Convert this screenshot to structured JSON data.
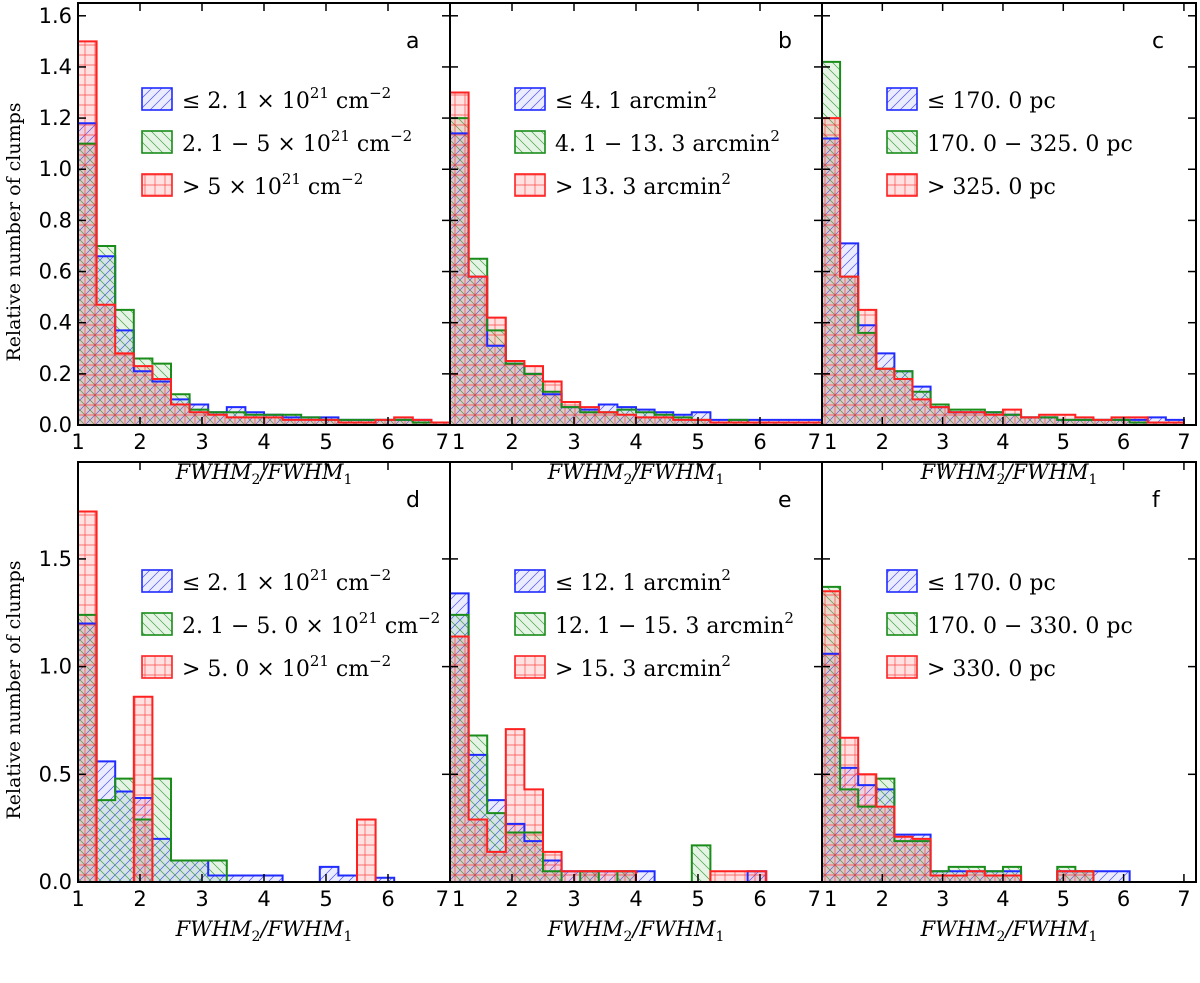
{
  "colors": {
    "blue": "#1f2bff",
    "green": "#1a8c1a",
    "red": "#ff2020"
  },
  "chart_data": [
    {
      "type": "histogram",
      "panel": "a",
      "xlabel": "FWHM2/FWHM1",
      "ylabel": "Relative number of clumps",
      "xlim": [
        1,
        7
      ],
      "ylim": [
        0,
        1.65
      ],
      "bin_width": 0.3,
      "x_ticks": [
        "1",
        "2",
        "3",
        "4",
        "5",
        "6",
        "7"
      ],
      "y_ticks": [
        "0.0",
        "0.2",
        "0.4",
        "0.6",
        "0.8",
        "1.0",
        "1.2",
        "1.4",
        "1.6"
      ],
      "y_tick_values": [
        0,
        0.2,
        0.4,
        0.6,
        0.8,
        1.0,
        1.2,
        1.4,
        1.6
      ],
      "series": [
        {
          "name": "≤2.1 × 10^21 cm^-2",
          "color": "blue",
          "values": [
            1.18,
            0.66,
            0.37,
            0.21,
            0.17,
            0.1,
            0.08,
            0.05,
            0.07,
            0.05,
            0.04,
            0.03,
            0.03,
            0.03,
            0.02,
            0.02,
            0.02,
            0.02,
            0.02,
            0.01
          ]
        },
        {
          "name": "2.1 − 5 × 10^21 cm^-2",
          "color": "green",
          "values": [
            1.1,
            0.7,
            0.45,
            0.26,
            0.24,
            0.12,
            0.06,
            0.05,
            0.05,
            0.04,
            0.04,
            0.04,
            0.03,
            0.02,
            0.02,
            0.02,
            0.02,
            0.02,
            0.01,
            0.01
          ]
        },
        {
          "name": "> 5 × 10^21 cm^-2",
          "color": "red",
          "values": [
            1.5,
            0.47,
            0.28,
            0.23,
            0.18,
            0.08,
            0.05,
            0.04,
            0.03,
            0.03,
            0.03,
            0.02,
            0.02,
            0.02,
            0.01,
            0.01,
            0.02,
            0.03,
            0.02,
            0.01
          ]
        }
      ],
      "legend": [
        "≤ 2.1 × 10",
        "2. 1 − 5 × 10",
        "> 5 × 10"
      ]
    },
    {
      "type": "histogram",
      "panel": "b",
      "xlim": [
        1,
        7
      ],
      "ylim": [
        0,
        1.65
      ],
      "bin_width": 0.3,
      "series": [
        {
          "name": "≤4.1 arcmin^2",
          "color": "blue",
          "values": [
            1.14,
            0.58,
            0.31,
            0.24,
            0.2,
            0.12,
            0.07,
            0.06,
            0.08,
            0.07,
            0.06,
            0.05,
            0.04,
            0.05,
            0.02,
            0.02,
            0.02,
            0.02,
            0.02,
            0.02
          ]
        },
        {
          "name": "4.1 − 13.3 arcmin^2",
          "color": "green",
          "values": [
            1.2,
            0.65,
            0.37,
            0.24,
            0.2,
            0.13,
            0.07,
            0.05,
            0.05,
            0.06,
            0.05,
            0.04,
            0.03,
            0.02,
            0.01,
            0.02,
            0.01,
            0.01,
            0.01,
            0.01
          ]
        },
        {
          "name": "> 13.3 arcmin^2",
          "color": "red",
          "values": [
            1.3,
            0.58,
            0.42,
            0.25,
            0.23,
            0.17,
            0.09,
            0.07,
            0.05,
            0.04,
            0.03,
            0.03,
            0.02,
            0.02,
            0.01,
            0.01,
            0.01,
            0.01,
            0.01,
            0.01
          ]
        }
      ]
    },
    {
      "type": "histogram",
      "panel": "c",
      "xlim": [
        1,
        7.2
      ],
      "ylim": [
        0,
        1.65
      ],
      "bin_width": 0.3,
      "series": [
        {
          "name": "≤170.0 pc",
          "color": "blue",
          "values": [
            1.12,
            0.71,
            0.39,
            0.28,
            0.21,
            0.15,
            0.07,
            0.05,
            0.05,
            0.05,
            0.04,
            0.03,
            0.03,
            0.02,
            0.02,
            0.02,
            0.02,
            0.02,
            0.03,
            0.02
          ]
        },
        {
          "name": "170.0 − 325.0 pc",
          "color": "green",
          "values": [
            1.42,
            0.58,
            0.36,
            0.22,
            0.21,
            0.13,
            0.08,
            0.06,
            0.06,
            0.05,
            0.04,
            0.03,
            0.03,
            0.02,
            0.02,
            0.02,
            0.02,
            0.01,
            0.01,
            0.01
          ]
        },
        {
          "name": "> 325.0 pc",
          "color": "red",
          "values": [
            1.2,
            0.58,
            0.45,
            0.22,
            0.18,
            0.1,
            0.07,
            0.05,
            0.05,
            0.04,
            0.06,
            0.03,
            0.04,
            0.04,
            0.03,
            0.02,
            0.03,
            0.03,
            0.01,
            0.01
          ]
        }
      ]
    },
    {
      "type": "histogram",
      "panel": "d",
      "xlim": [
        1,
        7
      ],
      "ylim": [
        0,
        1.95
      ],
      "bin_width": 0.3,
      "y_ticks": [
        "0.0",
        "0.5",
        "1.0",
        "1.5"
      ],
      "y_tick_values": [
        0,
        0.5,
        1.0,
        1.5
      ],
      "series": [
        {
          "name": "≤2.1 × 10^21 cm^-2",
          "color": "blue",
          "values": [
            1.2,
            0.56,
            0.42,
            0.39,
            0.2,
            0.1,
            0.1,
            0.03,
            0.03,
            0.03,
            0.03,
            0.0,
            0.0,
            0.07,
            0.03,
            0.0,
            0.02,
            0.0,
            0.0,
            0.0
          ]
        },
        {
          "name": "2.1 − 5.0 × 10^21 cm^-2",
          "color": "green",
          "values": [
            1.24,
            0.38,
            0.48,
            0.29,
            0.48,
            0.1,
            0.1,
            0.1,
            0.0,
            0.0,
            0.0,
            0.0,
            0.0,
            0.0,
            0.0,
            0.0,
            0.0,
            0.0,
            0.0,
            0.0
          ]
        },
        {
          "name": "> 5.0 × 10^21 cm^-2",
          "color": "red",
          "values": [
            1.72,
            0.0,
            0.0,
            0.86,
            0.0,
            0.0,
            0.0,
            0.0,
            0.0,
            0.0,
            0.0,
            0.0,
            0.0,
            0.0,
            0.0,
            0.29,
            0.0,
            0.0,
            0.0,
            0.0
          ]
        }
      ]
    },
    {
      "type": "histogram",
      "panel": "e",
      "xlim": [
        1,
        7
      ],
      "ylim": [
        0,
        1.95
      ],
      "bin_width": 0.3,
      "series": [
        {
          "name": "≤12.1 arcmin^2",
          "color": "blue",
          "values": [
            1.34,
            0.59,
            0.38,
            0.27,
            0.19,
            0.1,
            0.05,
            0.05,
            0.05,
            0.05,
            0.05,
            0.0,
            0.0,
            0.0,
            0.0,
            0.0,
            0.05,
            0.0,
            0.0,
            0.0
          ]
        },
        {
          "name": "12.1 − 15.3 arcmin^2",
          "color": "green",
          "values": [
            1.24,
            0.68,
            0.32,
            0.23,
            0.23,
            0.05,
            0.0,
            0.05,
            0.0,
            0.05,
            0.0,
            0.0,
            0.0,
            0.17,
            0.0,
            0.0,
            0.0,
            0.0,
            0.0,
            0.0
          ]
        },
        {
          "name": "> 15.3 arcmin^2",
          "color": "red",
          "values": [
            1.14,
            0.29,
            0.14,
            0.71,
            0.43,
            0.14,
            0.05,
            0.05,
            0.05,
            0.05,
            0.0,
            0.0,
            0.0,
            0.0,
            0.05,
            0.05,
            0.05,
            0.0,
            0.0,
            0.0
          ]
        }
      ]
    },
    {
      "type": "histogram",
      "panel": "f",
      "xlim": [
        1,
        7.2
      ],
      "ylim": [
        0,
        1.95
      ],
      "bin_width": 0.3,
      "series": [
        {
          "name": "≤170.0 pc",
          "color": "blue",
          "values": [
            1.06,
            0.53,
            0.45,
            0.43,
            0.22,
            0.22,
            0.05,
            0.05,
            0.05,
            0.05,
            0.05,
            0.0,
            0.0,
            0.05,
            0.05,
            0.05,
            0.05,
            0.0,
            0.0,
            0.0
          ]
        },
        {
          "name": "170.0 − 330.0 pc",
          "color": "green",
          "values": [
            1.37,
            0.43,
            0.35,
            0.48,
            0.19,
            0.19,
            0.05,
            0.07,
            0.07,
            0.05,
            0.07,
            0.0,
            0.0,
            0.07,
            0.05,
            0.0,
            0.0,
            0.0,
            0.0,
            0.0
          ]
        },
        {
          "name": "> 330.0 pc",
          "color": "red",
          "values": [
            1.35,
            0.67,
            0.5,
            0.35,
            0.21,
            0.2,
            0.03,
            0.03,
            0.05,
            0.03,
            0.03,
            0.0,
            0.0,
            0.05,
            0.05,
            0.0,
            0.0,
            0.0,
            0.0,
            0.0
          ]
        }
      ]
    }
  ],
  "text": {
    "panel_letters": [
      "a",
      "b",
      "c",
      "d",
      "e",
      "f"
    ],
    "xlabel": "FWHM",
    "ylabel": "Relative number of clumps",
    "x_ticks_a": [
      "1",
      "2",
      "3",
      "4",
      "5",
      "6",
      "7"
    ],
    "x_ticks_c": [
      "1",
      "2",
      "3",
      "4",
      "5",
      "6",
      "7"
    ],
    "legend_a": [
      {
        "pre": "≤ 2. 1 × 10",
        "sup": "21",
        "unit": " cm",
        "unit_sup": "−2"
      },
      {
        "pre": "2. 1 − 5 × 10",
        "sup": "21",
        "unit": " cm",
        "unit_sup": "−2"
      },
      {
        "pre": "> 5 × 10",
        "sup": "21",
        "unit": " cm",
        "unit_sup": "−2"
      }
    ],
    "legend_b": [
      {
        "pre": "≤ 4. 1 arcmin",
        "sup": "2"
      },
      {
        "pre": "4. 1 − 13. 3 arcmin",
        "sup": "2"
      },
      {
        "pre": "> 13. 3 arcmin",
        "sup": "2"
      }
    ],
    "legend_c": [
      {
        "pre": "≤ 170. 0 pc"
      },
      {
        "pre": "170. 0 − 325. 0 pc"
      },
      {
        "pre": "> 325. 0 pc"
      }
    ],
    "legend_d": [
      {
        "pre": "≤ 2. 1 × 10",
        "sup": "21",
        "unit": " cm",
        "unit_sup": "−2"
      },
      {
        "pre": "2. 1 − 5. 0 × 10",
        "sup": "21",
        "unit": " cm",
        "unit_sup": "−2"
      },
      {
        "pre": "> 5. 0 × 10",
        "sup": "21",
        "unit": " cm",
        "unit_sup": "−2"
      }
    ],
    "legend_e": [
      {
        "pre": "≤ 12. 1 arcmin",
        "sup": "2"
      },
      {
        "pre": "12. 1 − 15. 3 arcmin",
        "sup": "2"
      },
      {
        "pre": "> 15. 3 arcmin",
        "sup": "2"
      }
    ],
    "legend_f": [
      {
        "pre": "≤ 170. 0 pc"
      },
      {
        "pre": "170. 0 − 330. 0 pc"
      },
      {
        "pre": "> 330. 0 pc"
      }
    ]
  }
}
